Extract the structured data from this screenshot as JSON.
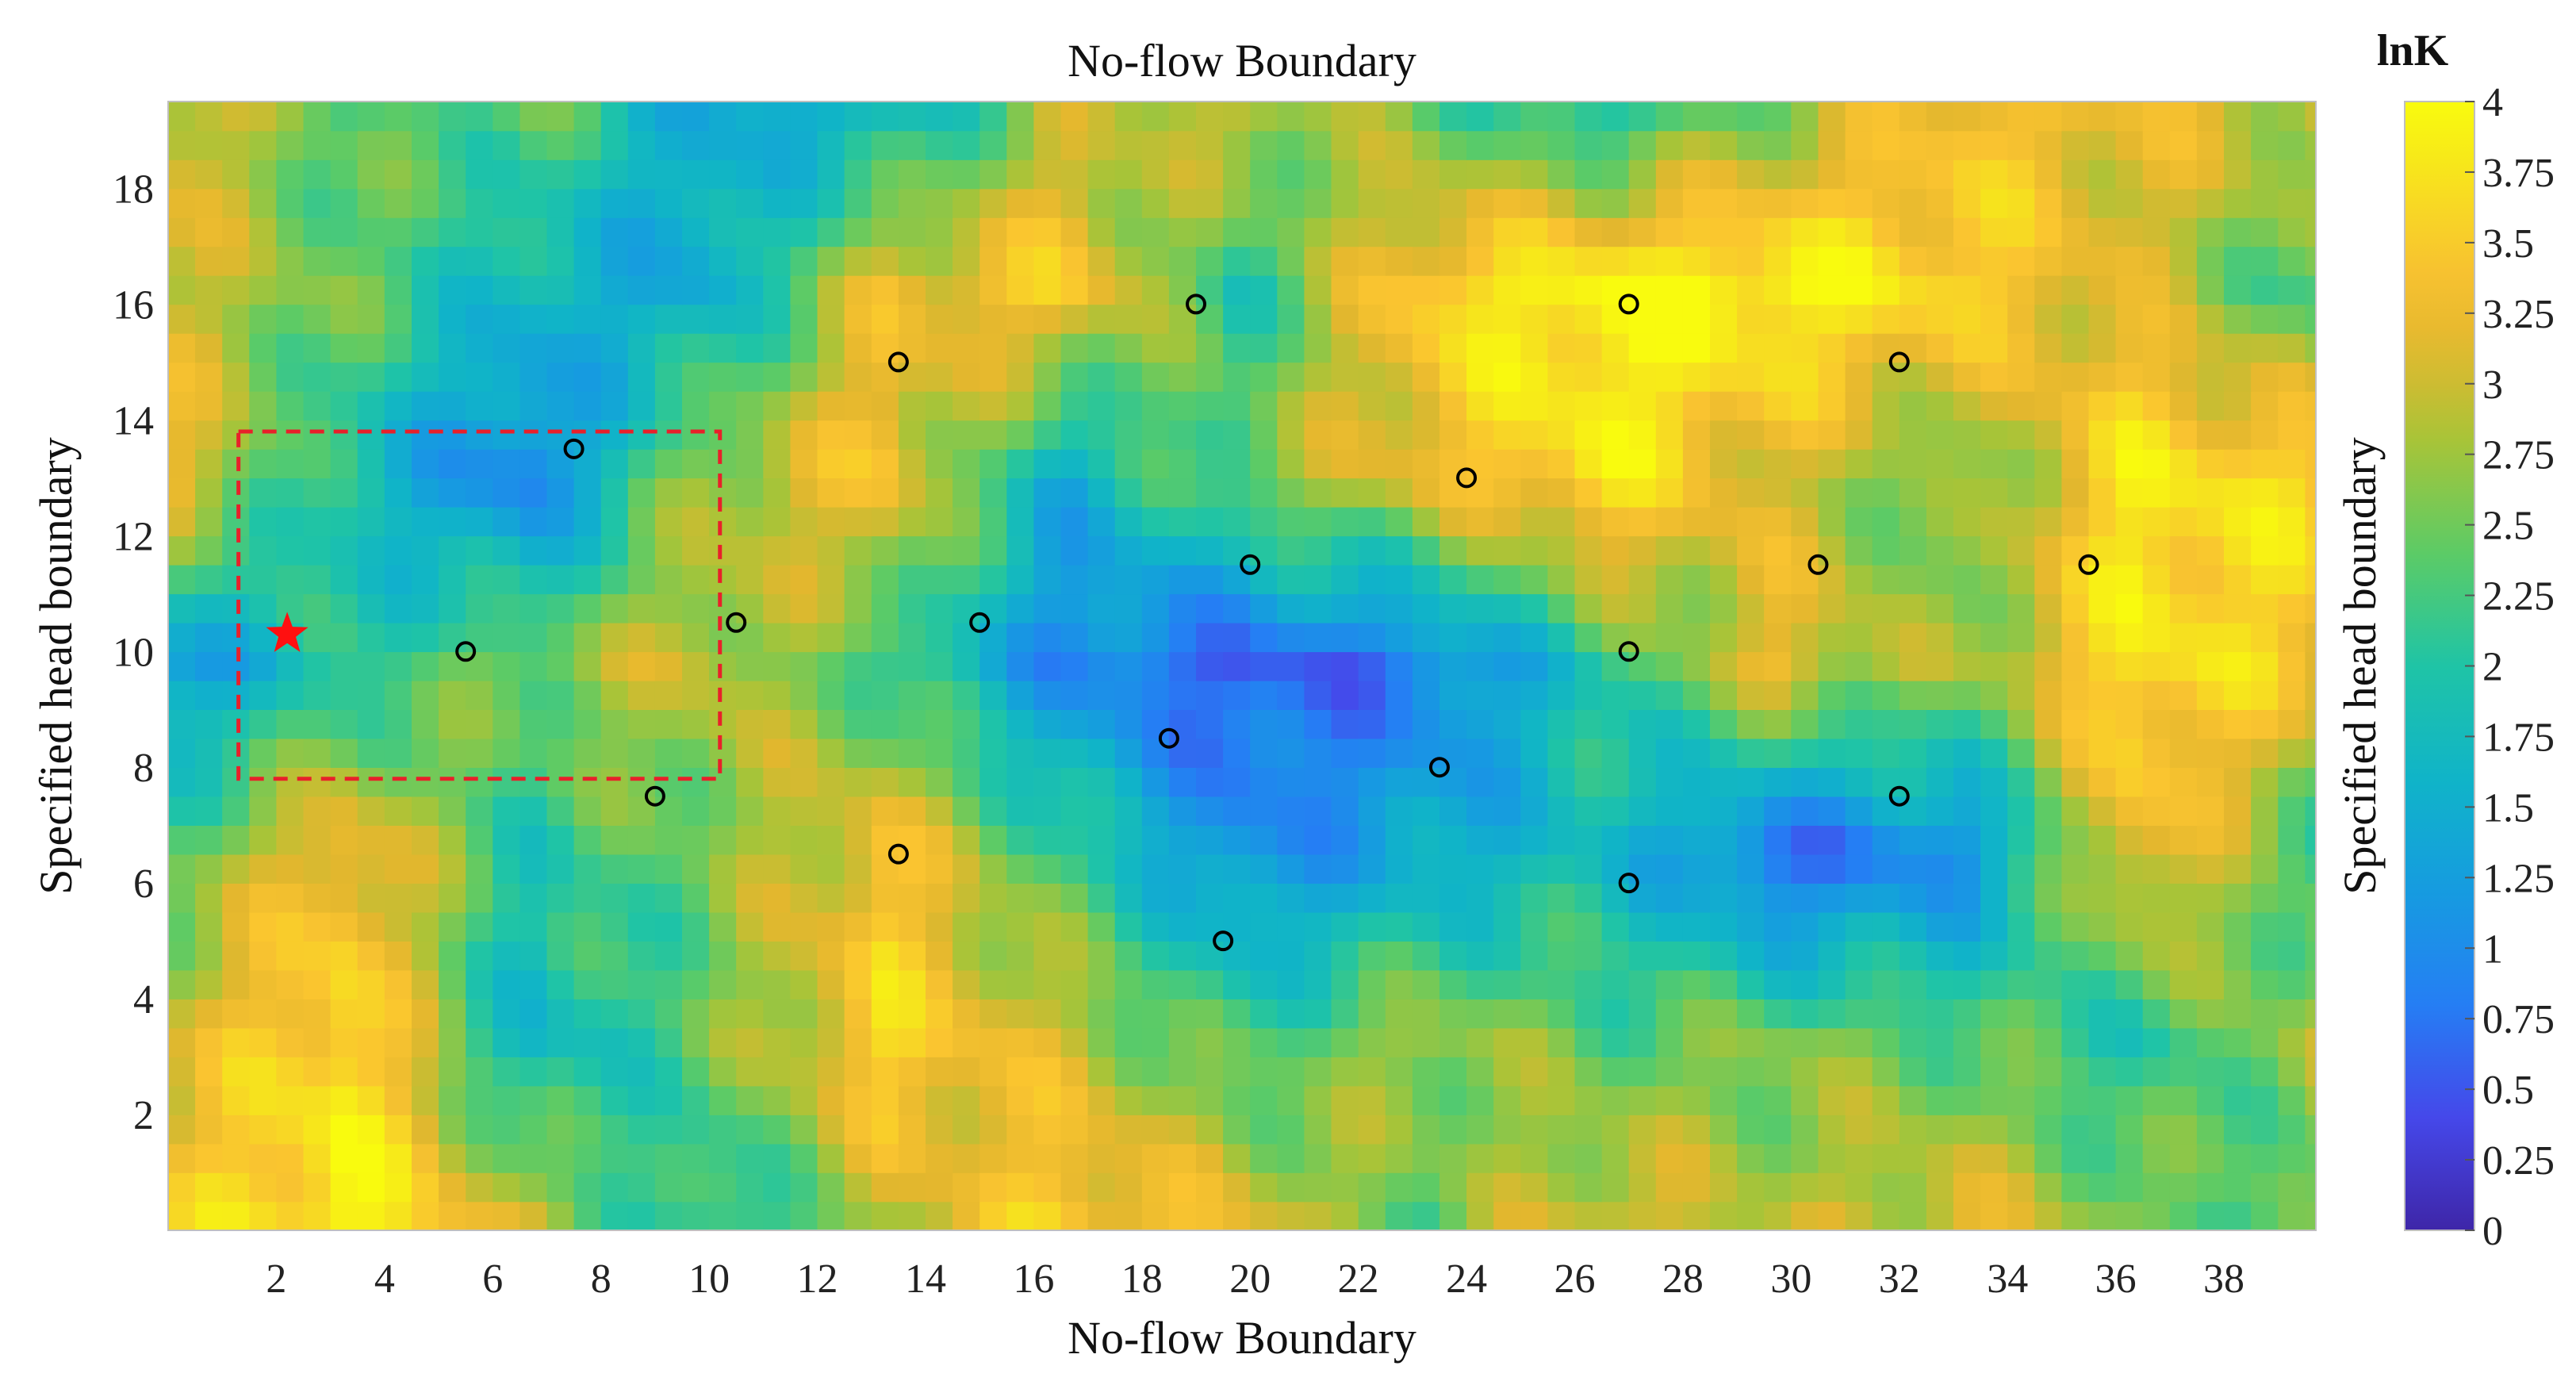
{
  "chart_data": {
    "type": "heatmap",
    "title": "No-flow Boundary",
    "xlabel": "No-flow Boundary",
    "ylabel": "Specified head boundary",
    "right_label": "Specified head boundary",
    "xlim": [
      0,
      39.7
    ],
    "ylim": [
      0,
      19.5
    ],
    "x_ticks": [
      2,
      4,
      6,
      8,
      10,
      12,
      14,
      16,
      18,
      20,
      22,
      24,
      26,
      28,
      30,
      32,
      34,
      36,
      38
    ],
    "y_ticks": [
      2,
      4,
      6,
      8,
      10,
      12,
      14,
      16,
      18
    ],
    "colorbar": {
      "title": "lnK",
      "range": [
        0,
        4
      ],
      "ticks": [
        "0",
        "0.25",
        "0.5",
        "0.75",
        "1",
        "1.25",
        "1.5",
        "1.75",
        "2",
        "2.25",
        "2.5",
        "2.75",
        "3",
        "3.25",
        "3.5",
        "3.75",
        "4"
      ],
      "colormap": "parula"
    },
    "field_grid": {
      "x_step": 3.3,
      "y_step": 3.25,
      "rows_top_to_bottom": [
        [
          3.2,
          2.3,
          2.5,
          1.4,
          1.5,
          2.8,
          3.0,
          2.4,
          1.8,
          2.6,
          3.4,
          3.2,
          3.0
        ],
        [
          3.0,
          2.5,
          1.6,
          1.4,
          3.2,
          3.5,
          2.0,
          3.6,
          4.0,
          4.0,
          3.6,
          3.0,
          2.2
        ],
        [
          3.3,
          1.8,
          0.8,
          2.8,
          3.4,
          1.5,
          2.6,
          3.2,
          3.8,
          3.0,
          2.4,
          3.8,
          3.6
        ],
        [
          1.2,
          2.0,
          2.6,
          3.0,
          2.2,
          1.0,
          0.5,
          0.8,
          2.0,
          3.2,
          2.6,
          3.8,
          3.4
        ],
        [
          2.4,
          3.4,
          2.0,
          2.5,
          3.4,
          2.2,
          1.0,
          1.4,
          1.8,
          0.6,
          1.0,
          3.4,
          2.2
        ],
        [
          3.0,
          3.8,
          1.6,
          2.4,
          3.6,
          3.0,
          2.2,
          2.8,
          2.4,
          2.6,
          2.4,
          2.0,
          2.8
        ],
        [
          3.4,
          4.0,
          3.0,
          1.8,
          2.8,
          3.6,
          3.2,
          2.4,
          3.2,
          2.8,
          3.2,
          2.6,
          2.2
        ]
      ]
    },
    "wells": [
      {
        "x": 7.5,
        "y": 13.5
      },
      {
        "x": 13.5,
        "y": 15.0
      },
      {
        "x": 19.0,
        "y": 16.0
      },
      {
        "x": 27.0,
        "y": 16.0
      },
      {
        "x": 32.0,
        "y": 15.0
      },
      {
        "x": 24.0,
        "y": 13.0
      },
      {
        "x": 20.0,
        "y": 11.5
      },
      {
        "x": 30.5,
        "y": 11.5
      },
      {
        "x": 35.5,
        "y": 11.5
      },
      {
        "x": 5.5,
        "y": 10.0
      },
      {
        "x": 10.5,
        "y": 10.5
      },
      {
        "x": 15.0,
        "y": 10.5
      },
      {
        "x": 27.0,
        "y": 10.0
      },
      {
        "x": 18.5,
        "y": 8.5
      },
      {
        "x": 23.5,
        "y": 8.0
      },
      {
        "x": 9.0,
        "y": 7.5
      },
      {
        "x": 32.0,
        "y": 7.5
      },
      {
        "x": 13.5,
        "y": 6.5
      },
      {
        "x": 27.0,
        "y": 6.0
      },
      {
        "x": 19.5,
        "y": 5.0
      }
    ],
    "source": {
      "x": 2.2,
      "y": 10.3
    },
    "subdomain_box": {
      "x0": 1.3,
      "x1": 10.2,
      "y0": 7.8,
      "y1": 13.8
    }
  }
}
